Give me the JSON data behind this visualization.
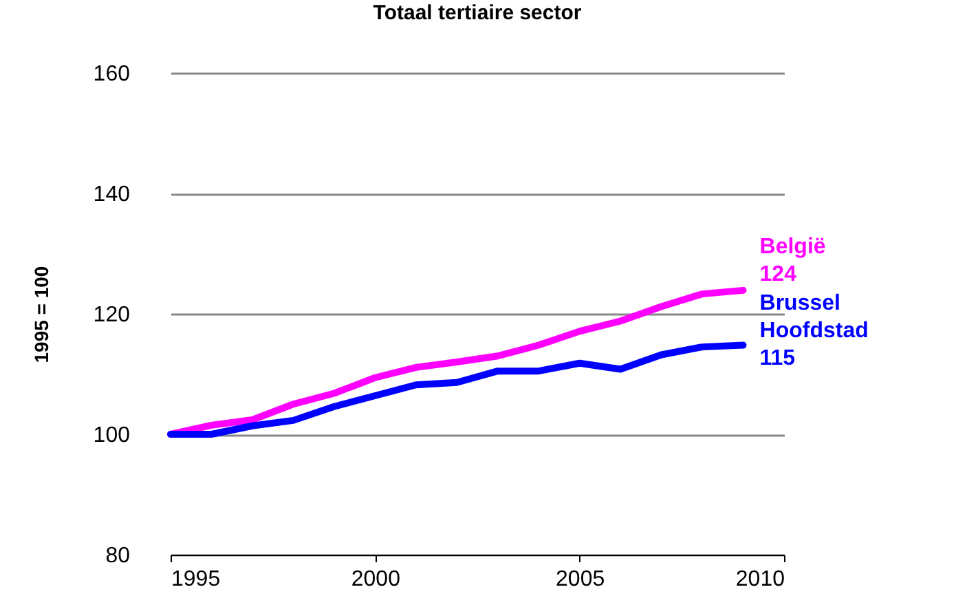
{
  "chart_data": {
    "type": "line",
    "title": "Totaal tertiaire sector",
    "ylabel": "1995 = 100",
    "x": [
      1995,
      1996,
      1997,
      1998,
      1999,
      2000,
      2001,
      2002,
      2003,
      2004,
      2005,
      2006,
      2007,
      2008,
      2009
    ],
    "series": [
      {
        "name": "België",
        "color": "#ff00ff",
        "values": [
          100,
          101.5,
          102.4,
          105,
          106.8,
          109.4,
          111.1,
          112,
          113,
          114.8,
          117.1,
          118.8,
          121.2,
          123.3,
          123.9
        ],
        "value_labels": [
          null,
          null,
          null,
          null,
          null,
          null,
          null,
          null,
          null,
          null,
          null,
          null,
          null,
          null,
          "124"
        ]
      },
      {
        "name": "Brussel Hoofdstad",
        "color": "#0000ff",
        "values": [
          100,
          100,
          101.4,
          102.3,
          104.6,
          106.4,
          108.2,
          108.6,
          110.5,
          110.5,
          111.8,
          110.8,
          113.2,
          114.5,
          114.8
        ],
        "value_labels": [
          null,
          null,
          null,
          null,
          null,
          null,
          null,
          null,
          null,
          null,
          null,
          null,
          null,
          null,
          "115"
        ]
      }
    ],
    "xlim": [
      1995,
      2010
    ],
    "xticks": [
      1995,
      2000,
      2005,
      2010
    ],
    "ylim": [
      80,
      160
    ],
    "yticks": [
      80,
      100,
      120,
      140,
      160
    ],
    "grid": "y",
    "legend": false,
    "marker": "none",
    "line_style": "solid"
  }
}
